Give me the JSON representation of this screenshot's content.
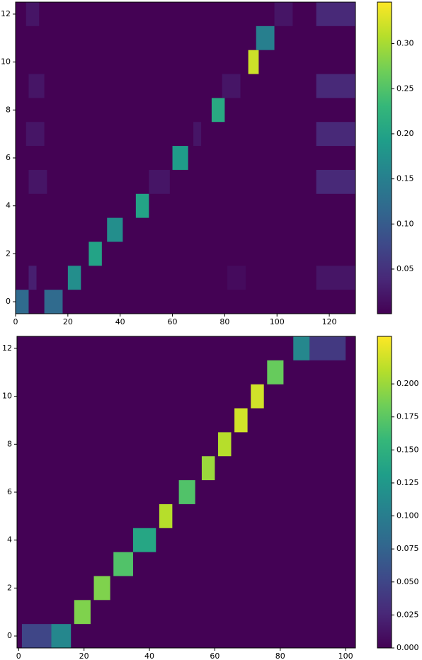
{
  "chart_data": [
    {
      "type": "heatmap",
      "xlim": [
        0,
        130
      ],
      "ylim": [
        -0.5,
        12.5
      ],
      "xticks": [
        0,
        20,
        40,
        60,
        80,
        100,
        120
      ],
      "yticks": [
        0,
        2,
        4,
        6,
        8,
        10,
        12
      ],
      "background": 0.001,
      "blocks": [
        {
          "row": 0,
          "x": [
            0,
            5
          ],
          "value": 0.12
        },
        {
          "row": 0,
          "x": [
            11,
            18
          ],
          "value": 0.12
        },
        {
          "row": 1,
          "x": [
            5,
            8
          ],
          "value": 0.03
        },
        {
          "row": 1,
          "x": [
            20,
            25
          ],
          "value": 0.17
        },
        {
          "row": 1,
          "x": [
            81,
            88
          ],
          "value": 0.01
        },
        {
          "row": 1,
          "x": [
            115,
            130
          ],
          "value": 0.02
        },
        {
          "row": 2,
          "x": [
            28,
            33
          ],
          "value": 0.2
        },
        {
          "row": 3,
          "x": [
            35,
            41
          ],
          "value": 0.17
        },
        {
          "row": 4,
          "x": [
            46,
            51
          ],
          "value": 0.2
        },
        {
          "row": 5,
          "x": [
            5,
            12
          ],
          "value": 0.02
        },
        {
          "row": 5,
          "x": [
            51,
            59
          ],
          "value": 0.02
        },
        {
          "row": 5,
          "x": [
            115,
            130
          ],
          "value": 0.04
        },
        {
          "row": 6,
          "x": [
            60,
            66
          ],
          "value": 0.19
        },
        {
          "row": 7,
          "x": [
            4,
            11
          ],
          "value": 0.02
        },
        {
          "row": 7,
          "x": [
            68,
            71
          ],
          "value": 0.02
        },
        {
          "row": 7,
          "x": [
            115,
            130
          ],
          "value": 0.04
        },
        {
          "row": 8,
          "x": [
            75,
            80
          ],
          "value": 0.21
        },
        {
          "row": 9,
          "x": [
            5,
            11
          ],
          "value": 0.02
        },
        {
          "row": 9,
          "x": [
            79,
            86
          ],
          "value": 0.02
        },
        {
          "row": 9,
          "x": [
            115,
            130
          ],
          "value": 0.04
        },
        {
          "row": 10,
          "x": [
            89,
            93
          ],
          "value": 0.32
        },
        {
          "row": 11,
          "x": [
            92,
            99
          ],
          "value": 0.15
        },
        {
          "row": 12,
          "x": [
            4,
            9
          ],
          "value": 0.02
        },
        {
          "row": 12,
          "x": [
            99,
            106
          ],
          "value": 0.02
        },
        {
          "row": 12,
          "x": [
            115,
            130
          ],
          "value": 0.04
        }
      ],
      "colorbar": {
        "lim": [
          0.0005,
          0.346
        ],
        "ticks": [
          0.05,
          {
            "value": 0.1,
            "label": "0.10"
          },
          0.15,
          {
            "value": 0.2,
            "label": "0.20"
          },
          0.25,
          {
            "value": 0.3,
            "label": "0.30"
          }
        ]
      },
      "colormap": [
        "#440154",
        "#482878",
        "#3e4989",
        "#31688e",
        "#26828e",
        "#1f9e89",
        "#35b779",
        "#6ece58",
        "#b5de2b",
        "#fde725"
      ]
    },
    {
      "type": "heatmap",
      "xlim": [
        -0.5,
        103
      ],
      "ylim": [
        -0.5,
        12.5
      ],
      "xticks": [
        0,
        20,
        40,
        60,
        80,
        100
      ],
      "yticks": [
        0,
        2,
        4,
        6,
        8,
        10,
        12
      ],
      "background": 0.001,
      "blocks": [
        {
          "row": 0,
          "x": [
            1,
            10
          ],
          "value": 0.05
        },
        {
          "row": 0,
          "x": [
            10,
            16
          ],
          "value": 0.11
        },
        {
          "row": 1,
          "x": [
            17,
            22
          ],
          "value": 0.19
        },
        {
          "row": 2,
          "x": [
            23,
            28
          ],
          "value": 0.19
        },
        {
          "row": 3,
          "x": [
            29,
            35
          ],
          "value": 0.17
        },
        {
          "row": 4,
          "x": [
            35,
            42
          ],
          "value": 0.14
        },
        {
          "row": 5,
          "x": [
            43,
            47
          ],
          "value": 0.21
        },
        {
          "row": 6,
          "x": [
            49,
            54
          ],
          "value": 0.17
        },
        {
          "row": 7,
          "x": [
            56,
            60
          ],
          "value": 0.2
        },
        {
          "row": 8,
          "x": [
            61,
            65
          ],
          "value": 0.21
        },
        {
          "row": 9,
          "x": [
            66,
            70
          ],
          "value": 0.22
        },
        {
          "row": 10,
          "x": [
            71,
            75
          ],
          "value": 0.22
        },
        {
          "row": 11,
          "x": [
            76,
            81
          ],
          "value": 0.18
        },
        {
          "row": 12,
          "x": [
            84,
            89
          ],
          "value": 0.11
        },
        {
          "row": 12,
          "x": [
            89,
            100
          ],
          "value": 0.04
        }
      ],
      "colorbar": {
        "lim": [
          0,
          0.236
        ],
        "ticks": [
          {
            "value": 0,
            "label": "0.000"
          },
          0.025,
          {
            "value": 0.05,
            "label": "0.050"
          },
          0.075,
          {
            "value": 0.1,
            "label": "0.100"
          },
          0.125,
          {
            "value": 0.15,
            "label": "0.150"
          },
          0.175,
          {
            "value": 0.2,
            "label": "0.200"
          }
        ]
      },
      "colormap": [
        "#440154",
        "#482878",
        "#3e4989",
        "#31688e",
        "#26828e",
        "#1f9e89",
        "#35b779",
        "#6ece58",
        "#b5de2b",
        "#fde725"
      ]
    }
  ]
}
